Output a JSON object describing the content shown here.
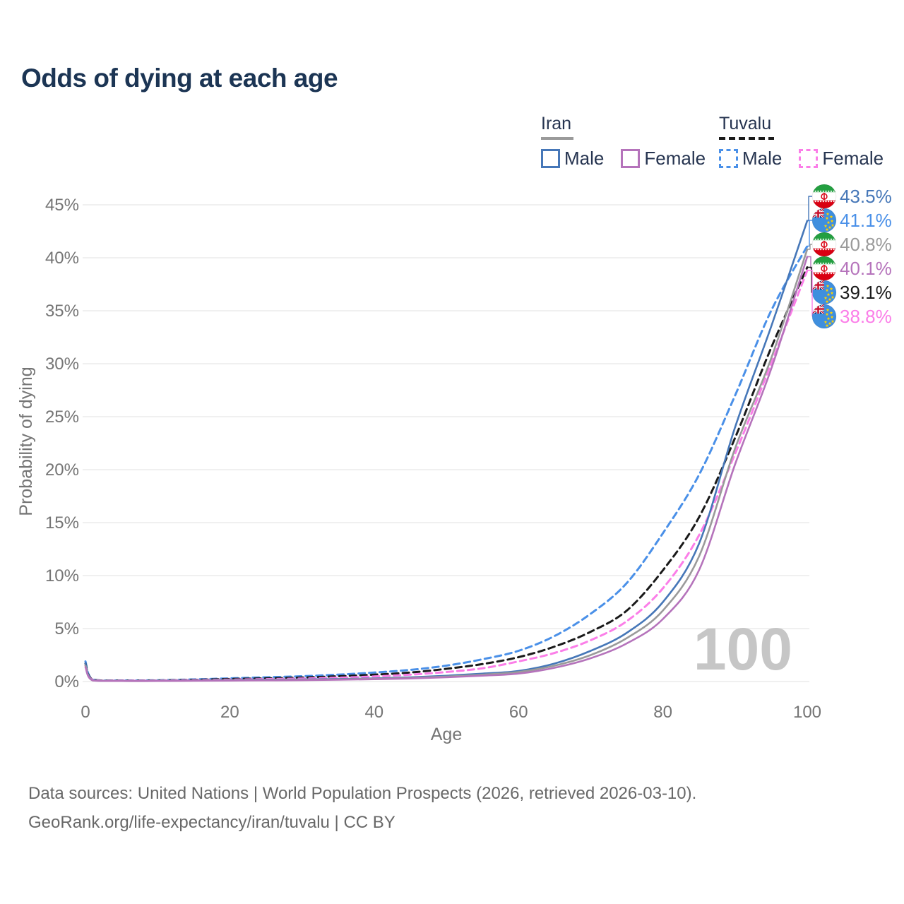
{
  "title": "Odds of dying at each age",
  "watermark": "100",
  "legend": {
    "groups": [
      {
        "name": "Iran",
        "line_style": "solid",
        "line_color": "#9a9a9a",
        "items": [
          {
            "label": "Male",
            "color": "#4677b8",
            "style": "solid"
          },
          {
            "label": "Female",
            "color": "#b573bb",
            "style": "solid"
          }
        ]
      },
      {
        "name": "Tuvalu",
        "line_style": "dashed",
        "line_color": "#1a1a1a",
        "items": [
          {
            "label": "Male",
            "color": "#4a90e8",
            "style": "dashed"
          },
          {
            "label": "Female",
            "color": "#fb7ee8",
            "style": "dashed"
          }
        ]
      }
    ]
  },
  "footer": {
    "line1": "Data sources: United Nations | World Population Prospects (2026, retrieved 2026-03-10).",
    "line2": "GeoRank.org/life-expectancy/iran/tuvalu | CC BY"
  },
  "chart_data": {
    "type": "line",
    "title": "Odds of dying at each age",
    "xlabel": "Age",
    "ylabel": "Probability of dying",
    "xlim": [
      0,
      100
    ],
    "ylim": [
      0,
      46
    ],
    "xticks": [
      0,
      20,
      40,
      60,
      80,
      100
    ],
    "yticks": [
      0,
      5,
      10,
      15,
      20,
      25,
      30,
      35,
      40,
      45
    ],
    "ytick_suffix": "%",
    "grid": "horizontal-light",
    "legend_position": "top-right",
    "ages": [
      0,
      1,
      5,
      10,
      15,
      20,
      25,
      30,
      35,
      40,
      45,
      50,
      55,
      60,
      65,
      70,
      75,
      80,
      85,
      90,
      95,
      100
    ],
    "series": [
      {
        "name": "Iran Male",
        "country": "iran",
        "sex": "Male",
        "color": "#4677b8",
        "dash": "solid",
        "end_label": "43.5%",
        "end_value": 43.5,
        "values": [
          1.7,
          0.12,
          0.06,
          0.07,
          0.1,
          0.15,
          0.18,
          0.2,
          0.24,
          0.3,
          0.4,
          0.55,
          0.75,
          1.0,
          1.7,
          2.9,
          4.6,
          7.5,
          13.0,
          24.0,
          33.5,
          43.5
        ]
      },
      {
        "name": "Tuvalu Male",
        "country": "tuvalu",
        "sex": "Male",
        "color": "#4a90e8",
        "dash": "dashed",
        "end_label": "41.1%",
        "end_value": 41.1,
        "values": [
          1.9,
          0.2,
          0.1,
          0.12,
          0.2,
          0.3,
          0.4,
          0.5,
          0.65,
          0.85,
          1.1,
          1.5,
          2.1,
          2.9,
          4.3,
          6.4,
          9.3,
          14.0,
          19.5,
          27.0,
          35.0,
          41.1
        ]
      },
      {
        "name": "Iran Both sexes",
        "country": "iran",
        "sex": "Both",
        "color": "#9a9a9a",
        "dash": "solid",
        "end_label": "40.8%",
        "end_value": 40.8,
        "values": [
          1.5,
          0.11,
          0.05,
          0.06,
          0.09,
          0.12,
          0.15,
          0.17,
          0.2,
          0.26,
          0.34,
          0.47,
          0.65,
          0.9,
          1.5,
          2.5,
          4.1,
          6.7,
          11.8,
          22.0,
          30.5,
          40.8
        ]
      },
      {
        "name": "Iran Female",
        "country": "iran",
        "sex": "Female",
        "color": "#b573bb",
        "dash": "solid",
        "end_label": "40.1%",
        "end_value": 40.1,
        "values": [
          1.35,
          0.1,
          0.05,
          0.05,
          0.07,
          0.09,
          0.11,
          0.13,
          0.17,
          0.22,
          0.29,
          0.4,
          0.55,
          0.75,
          1.3,
          2.2,
          3.6,
          5.9,
          10.5,
          20.5,
          29.5,
          40.1
        ]
      },
      {
        "name": "Tuvalu Both sexes",
        "country": "tuvalu",
        "sex": "Both",
        "color": "#1a1a1a",
        "dash": "dashed",
        "end_label": "39.1%",
        "end_value": 39.1,
        "values": [
          1.7,
          0.18,
          0.09,
          0.1,
          0.16,
          0.24,
          0.3,
          0.38,
          0.5,
          0.65,
          0.85,
          1.2,
          1.65,
          2.3,
          3.3,
          4.7,
          6.7,
          10.5,
          15.5,
          23.0,
          31.5,
          39.1
        ]
      },
      {
        "name": "Tuvalu Female",
        "country": "tuvalu",
        "sex": "Female",
        "color": "#fb7ee8",
        "dash": "dashed",
        "end_label": "38.8%",
        "end_value": 38.8,
        "values": [
          1.5,
          0.16,
          0.08,
          0.09,
          0.13,
          0.18,
          0.23,
          0.28,
          0.36,
          0.48,
          0.65,
          0.9,
          1.25,
          1.9,
          2.7,
          3.9,
          5.7,
          8.8,
          13.8,
          21.5,
          30.0,
          38.8
        ]
      }
    ]
  }
}
